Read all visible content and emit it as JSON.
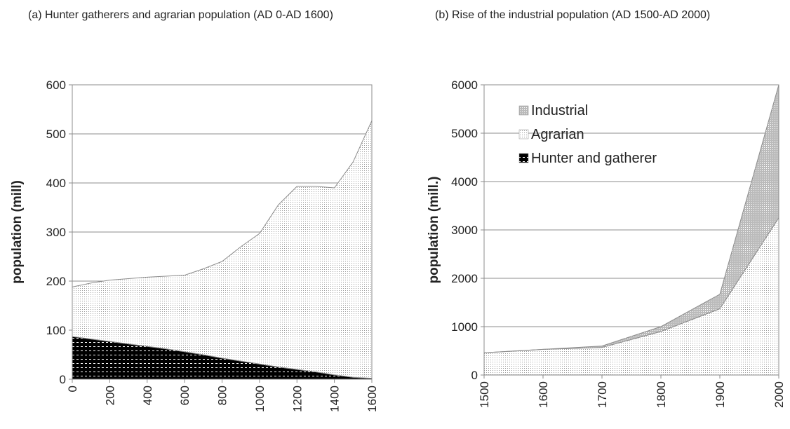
{
  "chart_data": [
    {
      "type": "area",
      "title": "(a)    Hunter gatherers and agrarian population (AD 0-AD 1600)",
      "y_label": "population (mill)",
      "x": [
        0,
        100,
        200,
        300,
        400,
        500,
        600,
        700,
        800,
        900,
        1000,
        1100,
        1200,
        1300,
        1400,
        1500,
        1600
      ],
      "series": [
        {
          "name": "Hunter and gatherer",
          "color": "#000000",
          "values": [
            87,
            82,
            77,
            72,
            67,
            62,
            56,
            50,
            43,
            37,
            31,
            25,
            20,
            15,
            9,
            4,
            2
          ]
        },
        {
          "name": "Agrarian",
          "color": "#9a9a9a",
          "values": [
            101,
            114,
            125,
            133,
            141,
            148,
            156,
            175,
            197,
            233,
            266,
            330,
            373,
            378,
            381,
            439,
            525
          ]
        }
      ],
      "xlim": [
        0,
        1600
      ],
      "xticks": [
        0,
        200,
        400,
        600,
        800,
        1000,
        1200,
        1400,
        1600
      ],
      "ylim": [
        0,
        600
      ],
      "yticks": [
        0,
        100,
        200,
        300,
        400,
        500,
        600
      ],
      "grid": true
    },
    {
      "type": "area",
      "title": "(b)    Rise of the industrial population (AD 1500-AD 2000)",
      "y_label": "population (mill.)",
      "x": [
        1500,
        1600,
        1700,
        1800,
        1900,
        2000
      ],
      "series": [
        {
          "name": "Hunter and gatherer",
          "color": "#000000",
          "values": [
            4,
            2,
            1,
            0,
            0,
            0
          ]
        },
        {
          "name": "Agrarian",
          "color": "#9a9a9a",
          "values": [
            456,
            528,
            569,
            900,
            1370,
            3250
          ]
        },
        {
          "name": "Industrial",
          "color": "#808080",
          "values": [
            0,
            0,
            30,
            100,
            300,
            2750
          ]
        }
      ],
      "xlim": [
        1500,
        2000
      ],
      "xticks": [
        1500,
        1600,
        1700,
        1800,
        1900,
        2000
      ],
      "ylim": [
        0,
        6000
      ],
      "yticks": [
        0,
        1000,
        2000,
        3000,
        4000,
        5000,
        6000
      ],
      "grid": true,
      "legend": "top-left"
    }
  ]
}
